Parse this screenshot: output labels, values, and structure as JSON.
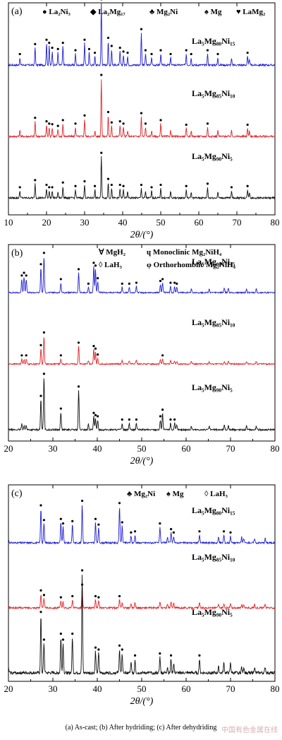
{
  "caption": "(a) As-cast; (b) After hydriding; (c) After dehydriding",
  "watermark": "中国有色金属在线",
  "colors": {
    "blue": "#1f1fd1",
    "red": "#e0242a",
    "black": "#111111"
  },
  "chart_data": [
    {
      "type": "line",
      "panel_label": "(a)",
      "xlabel": "2θ/(°)",
      "xlim": [
        10,
        80
      ],
      "xticks": [
        10,
        20,
        30,
        40,
        50,
        60,
        70,
        80
      ],
      "legend": [
        {
          "symbol": "●",
          "text": "La₂Ni₃"
        },
        {
          "symbol": "◆",
          "text": "La₂Mg₁₇"
        },
        {
          "symbol": "♣",
          "text": "Mg₂Ni"
        },
        {
          "symbol": "♠",
          "text": "Mg"
        },
        {
          "symbol": "♥",
          "text": "LaMg₂"
        }
      ],
      "series": [
        {
          "name": "La₅Mg₈₀Ni₁₅",
          "color": "#1f1fd1",
          "peaks": [
            [
              13,
              0.12
            ],
            [
              17,
              0.28
            ],
            [
              20,
              0.35
            ],
            [
              20.7,
              0.3
            ],
            [
              21.5,
              0.22
            ],
            [
              23,
              0.2
            ],
            [
              24.3,
              0.3
            ],
            [
              27.6,
              0.18
            ],
            [
              30,
              0.35
            ],
            [
              31.2,
              0.2
            ],
            [
              32.7,
              0.14
            ],
            [
              34.4,
              1.0
            ],
            [
              36.2,
              0.38
            ],
            [
              37.1,
              0.25
            ],
            [
              39.3,
              0.22
            ],
            [
              40.2,
              0.16
            ],
            [
              41.3,
              0.14
            ],
            [
              44.9,
              0.52
            ],
            [
              46,
              0.18
            ],
            [
              47.6,
              0.12
            ],
            [
              50,
              0.18
            ],
            [
              52.6,
              0.12
            ],
            [
              56.7,
              0.18
            ],
            [
              58,
              0.12
            ],
            [
              62.3,
              0.18
            ],
            [
              65,
              0.12
            ],
            [
              68.6,
              0.1
            ],
            [
              72.8,
              0.14
            ],
            [
              73.3,
              0.1
            ]
          ]
        },
        {
          "name": "La₅Mg₈₅Ni₁₀",
          "color": "#e0242a",
          "peaks": [
            [
              13,
              0.1
            ],
            [
              17,
              0.26
            ],
            [
              20,
              0.2
            ],
            [
              20.7,
              0.16
            ],
            [
              21.5,
              0.15
            ],
            [
              23,
              0.12
            ],
            [
              24.3,
              0.22
            ],
            [
              27.6,
              0.16
            ],
            [
              30,
              0.3
            ],
            [
              32.7,
              0.1
            ],
            [
              34.4,
              1.0
            ],
            [
              36.2,
              0.36
            ],
            [
              37.1,
              0.18
            ],
            [
              39.3,
              0.2
            ],
            [
              40.2,
              0.16
            ],
            [
              41.3,
              0.1
            ],
            [
              44.9,
              0.34
            ],
            [
              46,
              0.16
            ],
            [
              47.6,
              0.1
            ],
            [
              50,
              0.22
            ],
            [
              52.6,
              0.1
            ],
            [
              56.7,
              0.14
            ],
            [
              58,
              0.1
            ],
            [
              62.3,
              0.16
            ],
            [
              65,
              0.1
            ],
            [
              68.6,
              0.1
            ],
            [
              72.8,
              0.14
            ],
            [
              73.3,
              0.1
            ]
          ]
        },
        {
          "name": "La₅Mg₉₀Ni₅",
          "color": "#111111",
          "peaks": [
            [
              13,
              0.12
            ],
            [
              17,
              0.24
            ],
            [
              20,
              0.16
            ],
            [
              20.7,
              0.12
            ],
            [
              21.5,
              0.12
            ],
            [
              23,
              0.1
            ],
            [
              24.3,
              0.2
            ],
            [
              27.6,
              0.14
            ],
            [
              30,
              0.22
            ],
            [
              32.7,
              0.14
            ],
            [
              34.4,
              0.7
            ],
            [
              36.2,
              0.26
            ],
            [
              37.1,
              0.16
            ],
            [
              39.3,
              0.16
            ],
            [
              40.2,
              0.14
            ],
            [
              41.3,
              0.1
            ],
            [
              44.9,
              0.16
            ],
            [
              46,
              0.1
            ],
            [
              47.6,
              0.12
            ],
            [
              50,
              0.16
            ],
            [
              52.6,
              0.1
            ],
            [
              56.7,
              0.14
            ],
            [
              58,
              0.1
            ],
            [
              62.3,
              0.18
            ],
            [
              65,
              0.1
            ],
            [
              68.6,
              0.12
            ],
            [
              72.8,
              0.14
            ],
            [
              73.3,
              0.1
            ]
          ]
        }
      ]
    },
    {
      "type": "line",
      "panel_label": "(b)",
      "xlabel": "2θ/(°)",
      "xlim": [
        20,
        80
      ],
      "xticks": [
        20,
        30,
        40,
        50,
        60,
        70,
        80
      ],
      "legend": [
        {
          "symbol": "∀",
          "text": "MgH₂"
        },
        {
          "symbol": "ɥ",
          "text": "Monoclinic Mg₂NiH₄"
        },
        {
          "symbol": "◊",
          "text": "LaH₃"
        },
        {
          "symbol": "φ",
          "text": "Orthorhomblic Mg₂NiH₄"
        }
      ],
      "series": [
        {
          "name": "La₅Mg₈₀Ni₁₅",
          "color": "#1f1fd1",
          "peaks": [
            [
              23,
              0.3
            ],
            [
              23.5,
              0.36
            ],
            [
              24,
              0.3
            ],
            [
              27.3,
              0.55
            ],
            [
              28,
              0.8
            ],
            [
              31.8,
              0.22
            ],
            [
              35.8,
              0.44
            ],
            [
              38,
              0.12
            ],
            [
              39.2,
              0.58
            ],
            [
              39.6,
              0.52
            ],
            [
              40.1,
              0.24
            ],
            [
              45.6,
              0.12
            ],
            [
              47.2,
              0.12
            ],
            [
              48.8,
              0.14
            ],
            [
              54.2,
              0.18
            ],
            [
              54.7,
              0.22
            ],
            [
              56.5,
              0.14
            ],
            [
              57.4,
              0.14
            ],
            [
              57.9,
              0.12
            ],
            [
              61.2,
              0.08
            ],
            [
              65.2,
              0.08
            ],
            [
              68.6,
              0.1
            ],
            [
              69.5,
              0.1
            ],
            [
              73.6,
              0.08
            ],
            [
              75.8,
              0.08
            ]
          ]
        },
        {
          "name": "La₅Mg₈₅Ni₁₀",
          "color": "#e0242a",
          "peaks": [
            [
              23,
              0.12
            ],
            [
              23.5,
              0.1
            ],
            [
              24,
              0.12
            ],
            [
              27.3,
              0.36
            ],
            [
              28,
              0.66
            ],
            [
              31.8,
              0.12
            ],
            [
              35.8,
              0.42
            ],
            [
              38,
              0.08
            ],
            [
              39.2,
              0.34
            ],
            [
              39.6,
              0.28
            ],
            [
              40.1,
              0.14
            ],
            [
              45.6,
              0.08
            ],
            [
              47.2,
              0.08
            ],
            [
              48.8,
              0.1
            ],
            [
              54.2,
              0.1
            ],
            [
              54.7,
              0.12
            ],
            [
              56.5,
              0.08
            ],
            [
              57.4,
              0.08
            ],
            [
              57.9,
              0.06
            ],
            [
              61.2,
              0.06
            ],
            [
              65.2,
              0.06
            ],
            [
              68.6,
              0.06
            ],
            [
              69.5,
              0.06
            ],
            [
              73.6,
              0.06
            ],
            [
              75.8,
              0.06
            ]
          ]
        },
        {
          "name": "La₅Mg₉₀Ni₅",
          "color": "#111111",
          "peaks": [
            [
              23,
              0.1
            ],
            [
              23.5,
              0.08
            ],
            [
              24,
              0.08
            ],
            [
              27.3,
              0.55
            ],
            [
              28,
              0.95
            ],
            [
              31.8,
              0.32
            ],
            [
              35.8,
              0.72
            ],
            [
              38,
              0.1
            ],
            [
              39.2,
              0.24
            ],
            [
              39.6,
              0.2
            ],
            [
              40.1,
              0.18
            ],
            [
              45.6,
              0.12
            ],
            [
              47.2,
              0.12
            ],
            [
              48.8,
              0.12
            ],
            [
              54.2,
              0.18
            ],
            [
              54.7,
              0.3
            ],
            [
              56.5,
              0.12
            ],
            [
              57.4,
              0.12
            ],
            [
              57.9,
              0.08
            ],
            [
              61.2,
              0.06
            ],
            [
              65.2,
              0.06
            ],
            [
              68.6,
              0.08
            ],
            [
              69.5,
              0.08
            ],
            [
              73.6,
              0.06
            ],
            [
              75.8,
              0.06
            ]
          ]
        }
      ]
    },
    {
      "type": "line",
      "panel_label": "(c)",
      "xlabel": "2θ/(°)",
      "xlim": [
        20,
        80
      ],
      "xticks": [
        20,
        30,
        40,
        50,
        60,
        70,
        80
      ],
      "legend": [
        {
          "symbol": "♣",
          "text": "Mg₂Ni"
        },
        {
          "symbol": "♠",
          "text": "Mg"
        },
        {
          "symbol": "◊",
          "text": "LaH₃"
        }
      ],
      "series": [
        {
          "name": "La₅Mg₈₀Ni₁₅",
          "color": "#1f1fd1",
          "peaks": [
            [
              20,
              0.06
            ],
            [
              27.3,
              0.6
            ],
            [
              28,
              0.34
            ],
            [
              31.8,
              0.36
            ],
            [
              32.3,
              0.28
            ],
            [
              34.4,
              0.32
            ],
            [
              36.6,
              0.68
            ],
            [
              39.6,
              0.36
            ],
            [
              40.3,
              0.26
            ],
            [
              45,
              0.64
            ],
            [
              45.6,
              0.3
            ],
            [
              47.6,
              0.12
            ],
            [
              48.5,
              0.14
            ],
            [
              54.1,
              0.28
            ],
            [
              55.8,
              0.1
            ],
            [
              56.6,
              0.18
            ],
            [
              57.2,
              0.12
            ],
            [
              63,
              0.14
            ],
            [
              67.3,
              0.1
            ],
            [
              68.5,
              0.14
            ],
            [
              70,
              0.12
            ],
            [
              72.5,
              0.1
            ],
            [
              73,
              0.08
            ],
            [
              75.4,
              0.08
            ],
            [
              77.8,
              0.08
            ]
          ]
        },
        {
          "name": "La₅Mg₈₅Ni₁₀",
          "color": "#e0242a",
          "peaks": [
            [
              20,
              0.04
            ],
            [
              27.3,
              0.24
            ],
            [
              28,
              0.16
            ],
            [
              31.8,
              0.12
            ],
            [
              32.3,
              0.1
            ],
            [
              34.4,
              0.14
            ],
            [
              36.6,
              0.34
            ],
            [
              39.6,
              0.14
            ],
            [
              40.3,
              0.12
            ],
            [
              45,
              0.14
            ],
            [
              45.6,
              0.1
            ],
            [
              47.6,
              0.08
            ],
            [
              48.5,
              0.1
            ],
            [
              54.1,
              0.1
            ],
            [
              55.8,
              0.06
            ],
            [
              56.6,
              0.1
            ],
            [
              57.2,
              0.08
            ],
            [
              63,
              0.08
            ],
            [
              67.3,
              0.06
            ],
            [
              68.5,
              0.08
            ],
            [
              70,
              0.08
            ],
            [
              72.5,
              0.06
            ],
            [
              73,
              0.06
            ],
            [
              75.4,
              0.06
            ],
            [
              77.8,
              0.06
            ]
          ]
        },
        {
          "name": "La₅Mg₉₀Ni₅",
          "color": "#111111",
          "peaks": [
            [
              20,
              0.05
            ],
            [
              27.3,
              0.58
            ],
            [
              28,
              0.3
            ],
            [
              31.8,
              0.36
            ],
            [
              32.3,
              0.3
            ],
            [
              34.4,
              0.36
            ],
            [
              36.6,
              1.0
            ],
            [
              39.6,
              0.22
            ],
            [
              40.3,
              0.2
            ],
            [
              45,
              0.24
            ],
            [
              45.6,
              0.2
            ],
            [
              47.6,
              0.1
            ],
            [
              48.5,
              0.14
            ],
            [
              54.1,
              0.16
            ],
            [
              55.8,
              0.06
            ],
            [
              56.6,
              0.14
            ],
            [
              57.2,
              0.1
            ],
            [
              63,
              0.14
            ],
            [
              67.3,
              0.06
            ],
            [
              68.5,
              0.1
            ],
            [
              70,
              0.1
            ],
            [
              72.5,
              0.06
            ],
            [
              73,
              0.06
            ],
            [
              75.4,
              0.06
            ],
            [
              77.8,
              0.06
            ]
          ]
        }
      ]
    }
  ]
}
